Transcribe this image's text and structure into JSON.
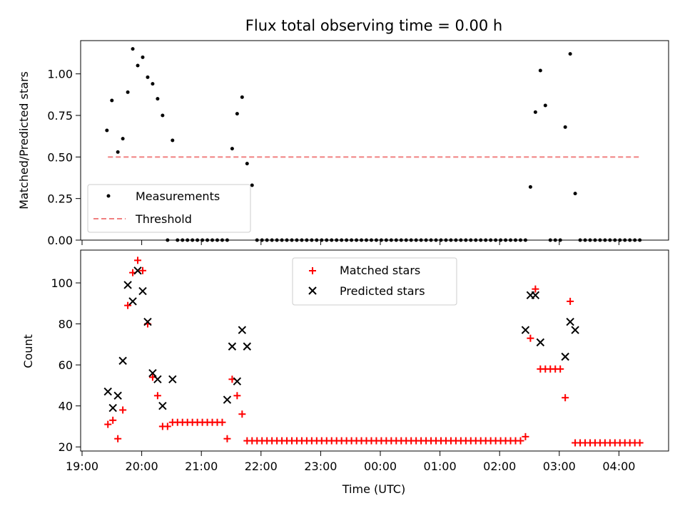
{
  "figure": {
    "background": "#ffffff"
  },
  "chart_data": [
    {
      "type": "scatter",
      "title": "Flux total observing time = 0.00 h",
      "ylabel": "Matched/Predicted stars",
      "xlabel": "",
      "ylim": [
        0,
        1.2
      ],
      "x_ticks_shown": false,
      "legend_placement": "lower-left",
      "y_ticks": [
        {
          "value": 0.0,
          "label": "0.00"
        },
        {
          "value": 0.25,
          "label": "0.25"
        },
        {
          "value": 0.5,
          "label": "0.50"
        },
        {
          "value": 0.75,
          "label": "0.75"
        },
        {
          "value": 1.0,
          "label": "1.00"
        }
      ],
      "series": [
        {
          "name": "Measurements",
          "kind": "dot",
          "color": "#000000",
          "x": [
            "19:25",
            "19:30",
            "19:36",
            "19:41",
            "19:46",
            "19:51",
            "19:56",
            "20:01",
            "20:06",
            "20:11",
            "20:16",
            "20:21",
            "20:31",
            "20:26",
            "20:36",
            "20:41",
            "20:46",
            "20:51",
            "20:56",
            "21:01",
            "21:06",
            "21:11",
            "21:16",
            "21:21",
            "21:26",
            "21:31",
            "21:36",
            "21:41",
            "21:46",
            "21:51",
            "21:56",
            "22:01",
            "22:06",
            "22:11",
            "22:16",
            "22:21",
            "22:26",
            "22:31",
            "22:36",
            "22:41",
            "22:46",
            "22:51",
            "22:56",
            "23:01",
            "23:06",
            "23:11",
            "23:16",
            "23:21",
            "23:26",
            "23:31",
            "23:36",
            "23:41",
            "23:46",
            "23:51",
            "23:56",
            "00:01",
            "00:06",
            "00:11",
            "00:16",
            "00:21",
            "00:26",
            "00:31",
            "00:36",
            "00:41",
            "00:46",
            "00:51",
            "00:56",
            "01:01",
            "01:06",
            "01:11",
            "01:16",
            "01:21",
            "01:26",
            "01:31",
            "01:36",
            "01:41",
            "01:46",
            "01:51",
            "01:56",
            "02:01",
            "02:06",
            "02:11",
            "02:16",
            "02:21",
            "02:26",
            "02:31",
            "02:36",
            "02:41",
            "02:46",
            "02:51",
            "02:56",
            "03:01",
            "03:06",
            "03:11",
            "03:16",
            "03:21",
            "03:26",
            "03:31",
            "03:36",
            "03:41",
            "03:46",
            "03:51",
            "03:56",
            "04:01",
            "04:06",
            "04:11",
            "04:16",
            "04:21"
          ],
          "y": [
            0.66,
            0.84,
            0.53,
            0.61,
            0.89,
            1.15,
            1.05,
            1.1,
            0.98,
            0.94,
            0.85,
            0.75,
            0.6,
            0.0,
            0.0,
            0.0,
            0.0,
            0.0,
            0.0,
            0.0,
            0.0,
            0.0,
            0.0,
            0.0,
            0.0,
            0.55,
            0.76,
            0.86,
            0.46,
            0.33,
            0.0,
            0.0,
            0.0,
            0.0,
            0.0,
            0.0,
            0.0,
            0.0,
            0.0,
            0.0,
            0.0,
            0.0,
            0.0,
            0.0,
            0.0,
            0.0,
            0.0,
            0.0,
            0.0,
            0.0,
            0.0,
            0.0,
            0.0,
            0.0,
            0.0,
            0.0,
            0.0,
            0.0,
            0.0,
            0.0,
            0.0,
            0.0,
            0.0,
            0.0,
            0.0,
            0.0,
            0.0,
            0.0,
            0.0,
            0.0,
            0.0,
            0.0,
            0.0,
            0.0,
            0.0,
            0.0,
            0.0,
            0.0,
            0.0,
            0.0,
            0.0,
            0.0,
            0.0,
            0.0,
            0.0,
            0.32,
            0.77,
            1.02,
            0.81,
            0.0,
            0.0,
            0.0,
            0.68,
            1.12,
            0.28,
            0.0,
            0.0,
            0.0,
            0.0,
            0.0,
            0.0,
            0.0,
            0.0,
            0.0,
            0.0,
            0.0,
            0.0,
            0.0
          ]
        },
        {
          "name": "Threshold",
          "kind": "dashed-line",
          "color": "#f08080",
          "x": [
            "19:26",
            "04:21"
          ],
          "y": [
            0.5,
            0.5
          ]
        }
      ]
    },
    {
      "type": "scatter",
      "title": "",
      "ylabel": "Count",
      "xlabel": "Time (UTC)",
      "ylim": [
        18,
        116
      ],
      "legend_placement": "upper-center",
      "y_ticks": [
        {
          "value": 20,
          "label": "20"
        },
        {
          "value": 40,
          "label": "40"
        },
        {
          "value": 60,
          "label": "60"
        },
        {
          "value": 80,
          "label": "80"
        },
        {
          "value": 100,
          "label": "100"
        }
      ],
      "x_ticks": [
        "19:00",
        "20:00",
        "21:00",
        "22:00",
        "23:00",
        "00:00",
        "01:00",
        "02:00",
        "03:00",
        "04:00"
      ],
      "series": [
        {
          "name": "Matched stars",
          "kind": "plus",
          "color": "#ff0000",
          "x": [
            "19:26",
            "19:31",
            "19:36",
            "19:41",
            "19:46",
            "19:51",
            "19:56",
            "20:01",
            "20:06",
            "20:11",
            "20:16",
            "20:21",
            "20:26",
            "20:31",
            "20:36",
            "20:41",
            "20:46",
            "20:51",
            "20:56",
            "21:01",
            "21:06",
            "21:11",
            "21:16",
            "21:21",
            "21:26",
            "21:31",
            "21:36",
            "21:41",
            "21:46",
            "21:51",
            "21:56",
            "22:01",
            "22:06",
            "22:11",
            "22:16",
            "22:21",
            "22:26",
            "22:31",
            "22:36",
            "22:41",
            "22:46",
            "22:51",
            "22:56",
            "23:01",
            "23:06",
            "23:11",
            "23:16",
            "23:21",
            "23:26",
            "23:31",
            "23:36",
            "23:41",
            "23:46",
            "23:51",
            "23:56",
            "00:01",
            "00:06",
            "00:11",
            "00:16",
            "00:21",
            "00:26",
            "00:31",
            "00:36",
            "00:41",
            "00:46",
            "00:51",
            "00:56",
            "01:01",
            "01:06",
            "01:11",
            "01:16",
            "01:21",
            "01:26",
            "01:31",
            "01:36",
            "01:41",
            "01:46",
            "01:51",
            "01:56",
            "02:01",
            "02:06",
            "02:11",
            "02:16",
            "02:21",
            "02:26",
            "02:31",
            "02:36",
            "02:41",
            "02:46",
            "02:51",
            "02:56",
            "03:01",
            "03:06",
            "03:11",
            "03:16",
            "03:21",
            "03:26",
            "03:31",
            "03:36",
            "03:41",
            "03:46",
            "03:51",
            "03:56",
            "04:01",
            "04:06",
            "04:11",
            "04:16",
            "04:21"
          ],
          "y": [
            31,
            33,
            24,
            38,
            89,
            105,
            111,
            106,
            80,
            54,
            45,
            30,
            30,
            32,
            32,
            32,
            32,
            32,
            32,
            32,
            32,
            32,
            32,
            32,
            24,
            53,
            45,
            36,
            23,
            23,
            23,
            23,
            23,
            23,
            23,
            23,
            23,
            23,
            23,
            23,
            23,
            23,
            23,
            23,
            23,
            23,
            23,
            23,
            23,
            23,
            23,
            23,
            23,
            23,
            23,
            23,
            23,
            23,
            23,
            23,
            23,
            23,
            23,
            23,
            23,
            23,
            23,
            23,
            23,
            23,
            23,
            23,
            23,
            23,
            23,
            23,
            23,
            23,
            23,
            23,
            23,
            23,
            23,
            23,
            25,
            73,
            97,
            58,
            58,
            58,
            58,
            58,
            44,
            91,
            22,
            22,
            22,
            22,
            22,
            22,
            22,
            22,
            22,
            22,
            22,
            22,
            22,
            22
          ]
        },
        {
          "name": "Predicted stars",
          "kind": "cross",
          "color": "#000000",
          "x": [
            "19:26",
            "19:31",
            "19:36",
            "19:41",
            "19:46",
            "19:51",
            "19:56",
            "20:01",
            "20:06",
            "20:11",
            "20:16",
            "20:21",
            "20:31",
            "21:26",
            "21:31",
            "21:36",
            "21:41",
            "21:46",
            "02:26",
            "02:31",
            "02:36",
            "02:41",
            "03:06",
            "03:11",
            "03:16"
          ],
          "y": [
            47,
            39,
            45,
            62,
            99,
            91,
            106,
            96,
            81,
            56,
            53,
            40,
            53,
            43,
            69,
            52,
            77,
            69,
            77,
            94,
            94,
            71,
            64,
            81,
            77
          ]
        }
      ]
    }
  ]
}
